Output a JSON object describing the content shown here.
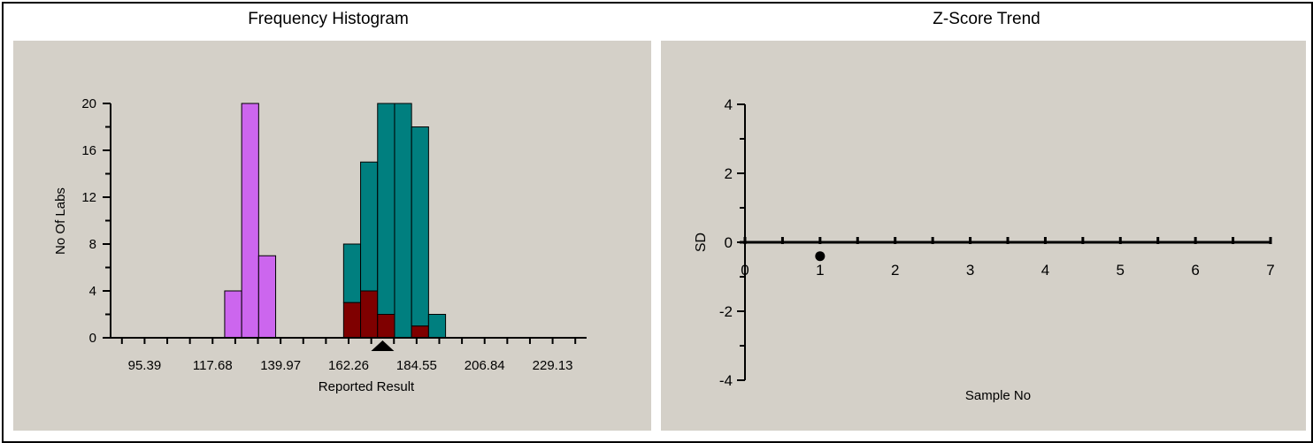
{
  "panels": {
    "left_title": "Frequency Histogram",
    "right_title": "Z-Score Trend"
  },
  "colors": {
    "panel_bg": "#d4d0c8",
    "purple": "#cc66ee",
    "teal": "#007f7f",
    "darkred": "#7f0000",
    "axis": "#000000"
  },
  "chart_data": [
    {
      "type": "bar",
      "title": "Frequency Histogram",
      "xlabel": "Reported Result",
      "ylabel": "No Of Labs",
      "ylim": [
        0,
        20
      ],
      "yticks": [
        "0",
        "4",
        "8",
        "12",
        "16",
        "20"
      ],
      "xticks": [
        "95.39",
        "117.68",
        "139.97",
        "162.26",
        "184.55",
        "206.84",
        "229.13"
      ],
      "xlim": [
        84.25,
        240.27
      ],
      "bin_width": 5.57,
      "marker": {
        "shape": "triangle",
        "x": 173.4
      },
      "series": [
        {
          "color": "purple",
          "bins": [
            {
              "x0": 121.64,
              "total": 4
            },
            {
              "x0": 127.21,
              "total": 20
            },
            {
              "x0": 132.78,
              "total": 7
            }
          ]
        },
        {
          "color": "teal",
          "bins": [
            {
              "x0": 160.62,
              "total": 8,
              "lower": 3
            },
            {
              "x0": 166.19,
              "total": 15,
              "lower": 4
            },
            {
              "x0": 171.76,
              "total": 20,
              "lower": 2
            },
            {
              "x0": 177.33,
              "total": 20,
              "lower": 0
            },
            {
              "x0": 182.9,
              "total": 18,
              "lower": 1
            },
            {
              "x0": 188.47,
              "total": 2,
              "lower": 0
            }
          ]
        }
      ]
    },
    {
      "type": "scatter",
      "title": "Z-Score Trend",
      "xlabel": "Sample No",
      "ylabel": "SD",
      "xlim": [
        0,
        7
      ],
      "ylim": [
        -4,
        4
      ],
      "xticks": [
        "0",
        "1",
        "2",
        "3",
        "4",
        "5",
        "6",
        "7"
      ],
      "yticks": [
        "-4",
        "-2",
        "0",
        "2",
        "4"
      ],
      "points": [
        {
          "x": 1,
          "y": -0.3
        }
      ]
    }
  ]
}
